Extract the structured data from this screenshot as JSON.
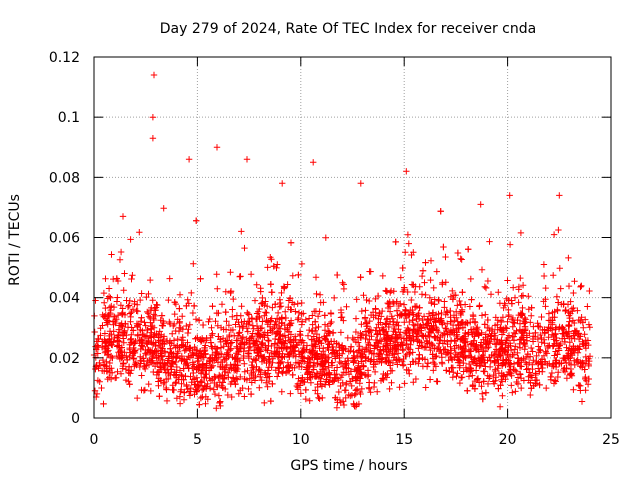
{
  "chart_data": {
    "type": "scatter",
    "title": "Day 279 of 2024, Rate Of TEC Index for receiver cnda",
    "xlabel": "GPS time / hours",
    "ylabel": "ROTI / TECUs",
    "xlim": [
      0,
      25
    ],
    "ylim": [
      0,
      0.12
    ],
    "xticks": [
      0,
      5,
      10,
      15,
      20,
      25
    ],
    "xtick_labels": [
      "0",
      "5",
      "10",
      "15",
      "20",
      "25"
    ],
    "yticks": [
      0,
      0.02,
      0.04,
      0.06,
      0.08,
      0.1,
      0.12
    ],
    "ytick_labels": [
      "0",
      "0.02",
      "0.04",
      "0.06",
      "0.08",
      "0.1",
      "0.12"
    ],
    "grid": true,
    "marker": "+",
    "color": "#ff0000",
    "series": [
      {
        "name": "ROTI",
        "x_range": [
          0,
          24
        ],
        "typical_band": [
          0.005,
          0.045
        ],
        "notable_points": [
          {
            "x": 2.9,
            "y": 0.114
          },
          {
            "x": 2.85,
            "y": 0.1
          },
          {
            "x": 2.85,
            "y": 0.093
          },
          {
            "x": 5.95,
            "y": 0.09
          },
          {
            "x": 4.6,
            "y": 0.086
          },
          {
            "x": 10.6,
            "y": 0.085
          },
          {
            "x": 7.4,
            "y": 0.086
          },
          {
            "x": 15.1,
            "y": 0.082
          },
          {
            "x": 9.1,
            "y": 0.078
          },
          {
            "x": 12.9,
            "y": 0.078
          },
          {
            "x": 20.1,
            "y": 0.074
          },
          {
            "x": 22.5,
            "y": 0.074
          },
          {
            "x": 18.7,
            "y": 0.071
          },
          {
            "x": 1.4,
            "y": 0.067
          }
        ]
      }
    ]
  }
}
